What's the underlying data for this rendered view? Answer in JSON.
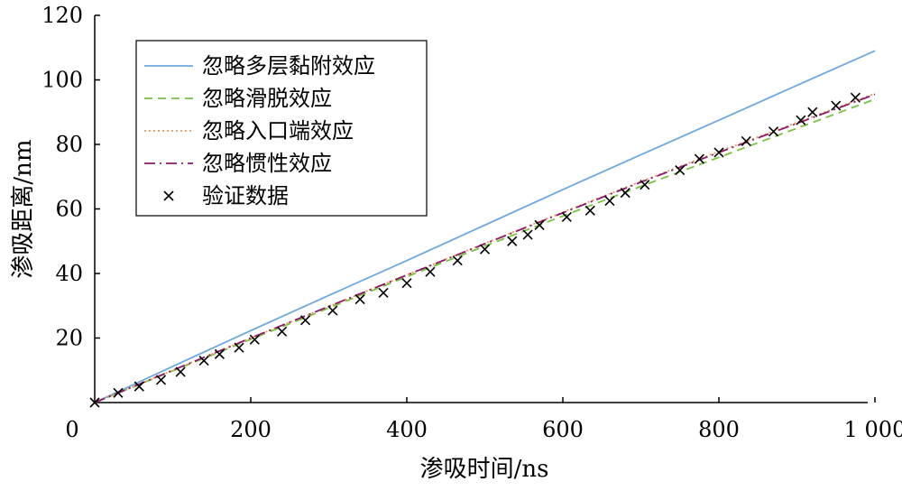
{
  "chart_data": {
    "type": "line",
    "title": "",
    "xlabel": "渗吸时间/ns",
    "ylabel": "渗吸距离/nm",
    "xlim": [
      0,
      1000
    ],
    "ylim": [
      0,
      120
    ],
    "x_ticks": [
      0,
      200,
      400,
      600,
      800,
      1000
    ],
    "x_tick_labels": [
      "0",
      "200",
      "400",
      "600",
      "800",
      "1 000"
    ],
    "y_ticks": [
      20,
      40,
      60,
      80,
      100,
      120
    ],
    "y_tick_labels": [
      "20",
      "40",
      "60",
      "80",
      "100",
      "120"
    ],
    "grid": false,
    "legend_position": "top-left",
    "series": [
      {
        "name": "忽略多层黏附效应",
        "kind": "line",
        "color": "#6fa8dc",
        "dash": "solid",
        "x": [
          0,
          100,
          200,
          300,
          400,
          500,
          600,
          700,
          800,
          900,
          1000
        ],
        "y": [
          0,
          11.2,
          22.3,
          33.2,
          44.0,
          55.0,
          66.0,
          76.8,
          87.5,
          98.3,
          109.0
        ]
      },
      {
        "name": "忽略滑脱效应",
        "kind": "line",
        "color": "#7ac142",
        "dash": "dashed",
        "x": [
          0,
          100,
          200,
          300,
          400,
          500,
          600,
          700,
          800,
          900,
          1000
        ],
        "y": [
          0,
          9.8,
          19.6,
          29.3,
          39.0,
          48.5,
          57.8,
          67.0,
          76.0,
          85.0,
          94.0
        ]
      },
      {
        "name": "忽略入口端效应",
        "kind": "line",
        "color": "#e69a5c",
        "dash": "dotted",
        "x": [
          0,
          100,
          200,
          300,
          400,
          500,
          600,
          700,
          800,
          900,
          1000
        ],
        "y": [
          0,
          10.0,
          20.0,
          29.8,
          39.6,
          49.3,
          59.0,
          68.5,
          77.8,
          86.8,
          95.8
        ]
      },
      {
        "name": "忽略惯性效应",
        "kind": "line",
        "color": "#8b1a6b",
        "dash": "dashdot",
        "x": [
          0,
          100,
          200,
          300,
          400,
          500,
          600,
          700,
          800,
          900,
          1000
        ],
        "y": [
          0,
          10.0,
          20.0,
          29.8,
          39.5,
          49.2,
          58.8,
          68.3,
          77.5,
          86.5,
          95.5
        ]
      },
      {
        "name": "验证数据",
        "kind": "scatter",
        "color": "#000000",
        "marker": "x",
        "x": [
          0,
          30,
          57,
          85,
          110,
          140,
          160,
          185,
          205,
          240,
          270,
          305,
          340,
          370,
          400,
          430,
          465,
          500,
          535,
          555,
          570,
          605,
          635,
          660,
          680,
          705,
          750,
          775,
          800,
          835,
          870,
          905,
          920,
          950,
          975
        ],
        "y": [
          0,
          3,
          5,
          7,
          9.5,
          13,
          15,
          17,
          19.5,
          22,
          25.5,
          28.5,
          32,
          34,
          37,
          40.5,
          44,
          47.5,
          50,
          52,
          55,
          57.5,
          59.5,
          62.5,
          65,
          67.5,
          72,
          75.5,
          77.5,
          81,
          84,
          87.5,
          90,
          92,
          94.5
        ]
      }
    ]
  }
}
